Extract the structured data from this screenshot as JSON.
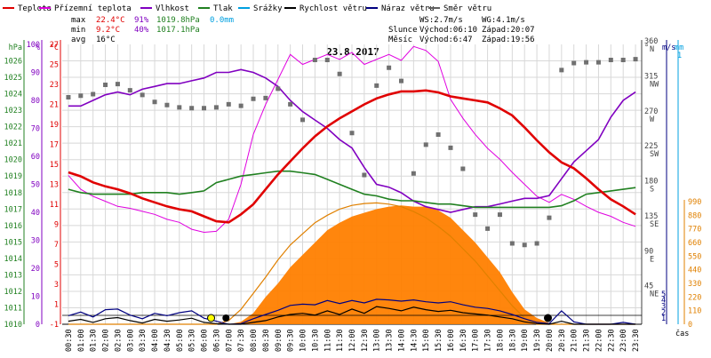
{
  "legend": [
    {
      "label": "Teplota",
      "color": "#e00000"
    },
    {
      "label": "Přízemní teplota",
      "color": "#e000e0"
    },
    {
      "label": "Vlhkost",
      "color": "#8000c0"
    },
    {
      "label": "Tlak",
      "color": "#208020"
    },
    {
      "label": "Srážky",
      "color": "#00a0e0"
    },
    {
      "label": "Rychlost větru",
      "color": "#000000"
    },
    {
      "label": "Náraz větru",
      "color": "#000080"
    },
    {
      "label": "Směr větru",
      "color": "#606060"
    }
  ],
  "stats": {
    "row_labels": [
      "max",
      "min",
      "avg"
    ],
    "temp": [
      "22.4°C",
      "9.2°C",
      "16°C"
    ],
    "hum": [
      "91%",
      "40%",
      ""
    ],
    "press": [
      "1019.8hPa",
      "1017.1hPa",
      ""
    ],
    "rain": [
      "0.0mm",
      "",
      ""
    ]
  },
  "info": {
    "ws": "WS:2.7m/s",
    "wg": "WG:4.1m/s",
    "sun_label": "Slunce",
    "sunrise": "Východ:06:10",
    "sunset": "Západ:20:07",
    "moon_label": "Měsíc",
    "moonrise": "Východ:6:47",
    "moonset": "Západ:19:56"
  },
  "chart_data": {
    "type": "line",
    "title": "23.8.2017",
    "xlabel": "čas",
    "x": [
      "00:30",
      "01:00",
      "01:30",
      "02:00",
      "02:30",
      "03:00",
      "03:30",
      "04:00",
      "04:30",
      "05:00",
      "05:30",
      "06:00",
      "06:30",
      "07:00",
      "07:30",
      "08:00",
      "08:30",
      "09:00",
      "09:30",
      "10:00",
      "10:30",
      "11:00",
      "11:30",
      "12:00",
      "12:30",
      "13:00",
      "13:30",
      "14:00",
      "14:30",
      "15:00",
      "15:30",
      "16:00",
      "16:30",
      "17:00",
      "17:30",
      "18:00",
      "18:30",
      "19:00",
      "19:30",
      "20:00",
      "20:30",
      "21:00",
      "21:30",
      "22:00",
      "22:30",
      "23:00",
      "23:30"
    ],
    "x_tick_labels": [
      "00:30",
      "01:00",
      "01:30",
      "02:00",
      "02:30",
      "03:00",
      "03:30",
      "04:00",
      "04:30",
      "05:00",
      "05:30",
      "06:00",
      "06:30",
      "07:00",
      "07:30",
      "08:00",
      "08:30",
      "09:00",
      "09:30",
      "10:00",
      "10:30",
      "11:00",
      "11:30",
      "12:00",
      "12:30",
      "13:00",
      "13:30",
      "14:00",
      "14:30",
      "15:00",
      "15:30",
      "16:00",
      "16:30",
      "17:00",
      "17:30",
      "18:00",
      "18:30",
      "19:00",
      "19:30",
      "20:00",
      "20:30",
      "21:00",
      "21:30",
      "22:00",
      "22:30",
      "23:00",
      "23:30"
    ],
    "axes": {
      "pressure": {
        "label": "hPa",
        "range": [
          1010,
          1027
        ],
        "ticks": [
          1010,
          1011,
          1012,
          1013,
          1014,
          1015,
          1016,
          1017,
          1018,
          1019,
          1020,
          1021,
          1022,
          1023,
          1024,
          1025,
          1026
        ]
      },
      "humidity": {
        "label": "%",
        "range": [
          0,
          100
        ],
        "ticks": [
          0,
          10,
          20,
          30,
          40,
          50,
          60,
          70,
          80,
          90,
          100
        ]
      },
      "temperature": {
        "label": "°C",
        "range": [
          -1,
          27
        ],
        "ticks": [
          -1,
          1,
          3,
          5,
          7,
          9,
          11,
          13,
          15,
          17,
          19,
          21,
          23,
          25,
          27
        ]
      },
      "direction": {
        "label": "°",
        "range": [
          0,
          360
        ],
        "ticks": [
          45,
          90,
          135,
          180,
          225,
          270,
          315,
          360
        ],
        "tick_labels": [
          "45 NE",
          "90 E",
          "135 SE",
          "180 S",
          "225 SW",
          "270 W",
          "315 NW",
          "360 N"
        ]
      },
      "wind": {
        "label": "m/s",
        "range": [
          0,
          5
        ],
        "ticks": [
          0,
          1,
          2,
          3,
          4,
          5
        ]
      },
      "rain": {
        "label": "mm",
        "range": [
          0,
          1
        ],
        "ticks": [
          0,
          1
        ]
      },
      "radiation": {
        "range": [
          0,
          990
        ],
        "ticks": [
          0,
          110,
          220,
          330,
          440,
          550,
          660,
          770,
          880,
          990
        ]
      }
    },
    "grid": true,
    "series": [
      {
        "name": "Teplota",
        "axis": "temperature",
        "values": [
          14.2,
          13.8,
          13.2,
          12.8,
          12.5,
          12.1,
          11.6,
          11.2,
          10.8,
          10.5,
          10.3,
          9.8,
          9.3,
          9.2,
          10.0,
          11.0,
          12.5,
          14.0,
          15.3,
          16.6,
          17.8,
          18.8,
          19.6,
          20.3,
          21.0,
          21.6,
          22.0,
          22.3,
          22.3,
          22.4,
          22.2,
          21.8,
          21.6,
          21.4,
          21.2,
          20.6,
          19.9,
          18.7,
          17.4,
          16.2,
          15.2,
          14.6,
          13.6,
          12.5,
          11.5,
          10.8,
          10.0
        ]
      },
      {
        "name": "Přízemní teplota",
        "axis": "temperature",
        "values": [
          13.9,
          12.5,
          11.8,
          11.3,
          10.8,
          10.6,
          10.3,
          10.0,
          9.5,
          9.2,
          8.5,
          8.2,
          8.3,
          9.5,
          13.0,
          18.0,
          21.0,
          23.5,
          26.0,
          25.0,
          25.5,
          26.0,
          25.5,
          26.2,
          25.0,
          25.5,
          26.0,
          25.4,
          26.8,
          26.4,
          25.3,
          21.5,
          19.6,
          18.0,
          16.6,
          15.5,
          14.2,
          13.0,
          11.8,
          11.2,
          12.0,
          11.5,
          10.8,
          10.2,
          9.8,
          9.2,
          8.8
        ]
      },
      {
        "name": "Vlhkost",
        "axis": "humidity",
        "values": [
          78,
          78,
          80,
          82,
          83,
          82,
          84,
          85,
          86,
          86,
          87,
          88,
          90,
          90,
          91,
          90,
          88,
          85,
          80,
          76,
          73,
          70,
          66,
          63,
          56,
          50,
          49,
          47,
          44,
          42,
          41,
          40,
          41,
          42,
          42,
          43,
          44,
          45,
          45,
          46,
          52,
          58,
          62,
          66,
          74,
          80,
          83
        ]
      },
      {
        "name": "Tlak",
        "axis": "pressure",
        "values": [
          1018.2,
          1018.0,
          1017.9,
          1017.9,
          1017.9,
          1017.9,
          1018.0,
          1018.0,
          1018.0,
          1017.9,
          1018.0,
          1018.1,
          1018.6,
          1018.8,
          1019.0,
          1019.1,
          1019.2,
          1019.3,
          1019.3,
          1019.2,
          1019.1,
          1018.8,
          1018.5,
          1018.2,
          1017.9,
          1017.8,
          1017.6,
          1017.5,
          1017.5,
          1017.4,
          1017.3,
          1017.3,
          1017.2,
          1017.1,
          1017.1,
          1017.1,
          1017.1,
          1017.1,
          1017.1,
          1017.1,
          1017.2,
          1017.5,
          1017.9,
          1018.0,
          1018.1,
          1018.2,
          1018.3
        ]
      },
      {
        "name": "Srážky",
        "axis": "rain",
        "values": [
          0,
          0,
          0,
          0,
          0,
          0,
          0,
          0,
          0,
          0,
          0,
          0,
          0,
          0,
          0,
          0,
          0,
          0,
          0,
          0,
          0,
          0,
          0,
          0,
          0,
          0,
          0,
          0,
          0,
          0,
          0,
          0,
          0,
          0,
          0,
          0,
          0,
          0,
          0,
          0,
          0,
          0,
          0,
          0,
          0,
          0,
          0
        ]
      },
      {
        "name": "Rychlost větru",
        "axis": "wind",
        "values": [
          0.5,
          0.8,
          0.3,
          0.9,
          1.1,
          0.6,
          0.2,
          0.8,
          0.5,
          0.7,
          1.0,
          0.3,
          0.1,
          0.0,
          0.0,
          0.3,
          0.6,
          1.2,
          1.6,
          1.8,
          1.5,
          2.2,
          1.6,
          2.5,
          1.8,
          2.9,
          2.6,
          2.2,
          2.8,
          2.4,
          2.1,
          2.3,
          1.9,
          1.7,
          1.5,
          1.2,
          0.9,
          0.4,
          0.1,
          0.0,
          0.5,
          0.0,
          0.0,
          0.0,
          0.0,
          0.0,
          0.0
        ]
      },
      {
        "name": "Náraz větru",
        "axis": "wind",
        "values": [
          1.4,
          2.0,
          1.2,
          2.4,
          2.5,
          1.5,
          0.9,
          1.8,
          1.4,
          1.9,
          2.2,
          1.0,
          0.5,
          0.0,
          0.1,
          0.9,
          1.6,
          2.3,
          3.1,
          3.3,
          3.2,
          3.9,
          3.4,
          3.9,
          3.5,
          4.1,
          4.0,
          3.8,
          4.0,
          3.7,
          3.5,
          3.7,
          3.2,
          2.8,
          2.6,
          2.2,
          1.6,
          0.9,
          0.3,
          0.1,
          2.2,
          0.4,
          0.0,
          0.0,
          0.0,
          0.3,
          0.0
        ]
      },
      {
        "name": "Směr větru",
        "axis": "direction",
        "values": [
          292,
          294,
          296,
          308,
          309,
          301,
          295,
          286,
          282,
          279,
          278,
          278,
          279,
          283,
          281,
          290,
          291,
          303,
          283,
          263,
          340,
          340,
          322,
          246,
          192,
          307,
          330,
          313,
          194,
          231,
          244,
          227,
          200,
          141,
          123,
          141,
          104,
          102,
          104,
          137,
          327,
          336,
          337,
          337,
          340,
          340,
          341
        ]
      },
      {
        "name": "radiation",
        "axis": "radiation",
        "values": [
          0,
          0,
          0,
          0,
          0,
          0,
          0,
          0,
          0,
          0,
          0,
          0,
          0,
          0,
          20,
          90,
          220,
          330,
          460,
          560,
          660,
          760,
          820,
          870,
          900,
          930,
          950,
          960,
          950,
          950,
          920,
          860,
          760,
          660,
          540,
          420,
          260,
          120,
          50,
          10,
          0,
          0,
          0,
          0,
          0,
          0,
          0
        ]
      },
      {
        "name": "clear-sky-radiation",
        "axis": "radiation",
        "values": [
          0,
          0,
          0,
          0,
          0,
          0,
          0,
          0,
          0,
          0,
          0,
          0,
          0,
          30,
          120,
          250,
          380,
          520,
          640,
          730,
          820,
          880,
          930,
          960,
          975,
          980,
          970,
          950,
          910,
          860,
          790,
          710,
          610,
          510,
          390,
          270,
          150,
          50,
          0,
          0,
          0,
          0,
          0,
          0,
          0,
          0,
          0
        ]
      }
    ]
  }
}
